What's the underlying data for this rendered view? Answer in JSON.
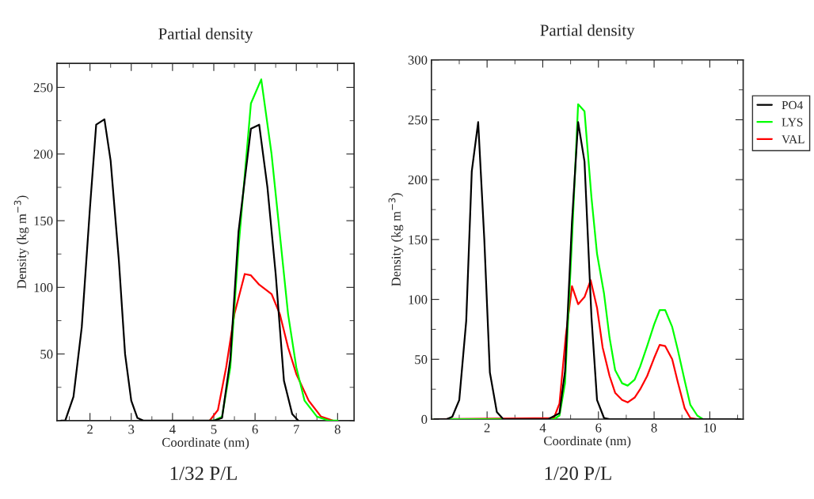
{
  "chart_data": [
    {
      "type": "line",
      "title": "Partial density",
      "xlabel": "Coordinate (nm)",
      "ylabel": "Density (kg m$^{−3}$)",
      "xlim": [
        1.2,
        8.4
      ],
      "xticks": [
        2,
        3,
        4,
        5,
        6,
        7,
        8
      ],
      "ylim": [
        0,
        268
      ],
      "yticks": [
        50,
        100,
        150,
        200,
        250
      ],
      "legend": false,
      "annotations": [
        "1/32 P/L"
      ],
      "series": [
        {
          "color": "#000000",
          "x": [
            1.3,
            1.4,
            1.6,
            1.8,
            2.0,
            2.15,
            2.35,
            2.5,
            2.7,
            2.85,
            3.0,
            3.15,
            3.3,
            5.0,
            5.2,
            5.4,
            5.6,
            5.9,
            6.1,
            6.3,
            6.5,
            6.7,
            6.9,
            7.05
          ],
          "values": [
            0,
            0,
            18,
            70,
            160,
            222,
            226,
            195,
            120,
            50,
            15,
            2,
            0,
            0,
            2,
            46,
            142,
            219,
            222,
            175,
            110,
            30,
            5,
            0
          ]
        },
        {
          "color": "#00ff00",
          "x": [
            4.9,
            5.0,
            5.2,
            5.4,
            5.6,
            5.9,
            6.15,
            6.4,
            6.6,
            6.8,
            7.0,
            7.2,
            7.5,
            7.8,
            8.0
          ],
          "values": [
            0,
            0,
            3,
            40,
            130,
            238,
            256,
            200,
            140,
            80,
            40,
            15,
            3,
            0,
            0
          ]
        },
        {
          "color": "#ff0000",
          "x": [
            4.9,
            5.1,
            5.3,
            5.5,
            5.75,
            5.9,
            6.1,
            6.4,
            6.6,
            6.8,
            7.0,
            7.3,
            7.6,
            7.9
          ],
          "values": [
            0,
            8,
            40,
            80,
            110,
            109,
            102,
            95,
            80,
            55,
            35,
            15,
            3,
            0
          ]
        }
      ]
    },
    {
      "type": "line",
      "title": "Partial density",
      "xlabel": "Coordinate (nm)",
      "ylabel": "Density (kg m$^{−3}$)",
      "xlim": [
        0,
        11.2
      ],
      "xticks": [
        2,
        4,
        6,
        8,
        10
      ],
      "ylim": [
        0,
        300
      ],
      "yticks": [
        0,
        50,
        100,
        150,
        200,
        250,
        300
      ],
      "legend": "right",
      "annotations": [
        "1/20 P/L"
      ],
      "series": [
        {
          "name": "PO4",
          "color": "#000000",
          "x": [
            0.1,
            0.55,
            0.75,
            1.0,
            1.25,
            1.45,
            1.68,
            1.9,
            2.1,
            2.35,
            2.58,
            4.2,
            4.6,
            4.8,
            5.05,
            5.27,
            5.5,
            5.75,
            5.95,
            6.2,
            6.4,
            11.1
          ],
          "values": [
            0,
            0,
            2,
            16,
            82,
            207,
            248,
            150,
            39,
            6,
            0,
            0,
            5,
            40,
            165,
            248,
            215,
            85,
            16,
            1,
            0,
            0
          ]
        },
        {
          "name": "LYS",
          "color": "#00ff00",
          "x": [
            0.1,
            4.4,
            4.6,
            4.8,
            5.05,
            5.27,
            5.5,
            5.75,
            5.95,
            6.2,
            6.4,
            6.6,
            6.85,
            7.05,
            7.3,
            7.5,
            7.75,
            8.0,
            8.2,
            8.4,
            8.65,
            8.85,
            9.1,
            9.3,
            9.55,
            9.75,
            11.1
          ],
          "values": [
            0,
            0,
            3,
            30,
            150,
            263,
            257,
            185,
            138,
            105,
            68,
            41,
            30,
            28,
            33,
            44,
            61,
            79,
            91,
            91,
            77,
            58,
            32,
            12,
            3,
            0,
            0
          ]
        },
        {
          "name": "VAL",
          "color": "#ff0000",
          "x": [
            0.1,
            4.4,
            4.6,
            4.83,
            5.05,
            5.27,
            5.5,
            5.72,
            5.95,
            6.15,
            6.4,
            6.6,
            6.85,
            7.05,
            7.3,
            7.5,
            7.75,
            8.0,
            8.2,
            8.4,
            8.65,
            8.85,
            9.1,
            9.3,
            9.55,
            11.1
          ],
          "values": [
            0,
            1,
            13,
            70,
            111,
            96,
            102,
            116,
            93,
            60,
            36,
            22,
            16,
            14,
            18,
            25,
            36,
            51,
            62,
            61,
            50,
            31,
            9,
            1,
            0,
            0
          ]
        }
      ]
    }
  ]
}
